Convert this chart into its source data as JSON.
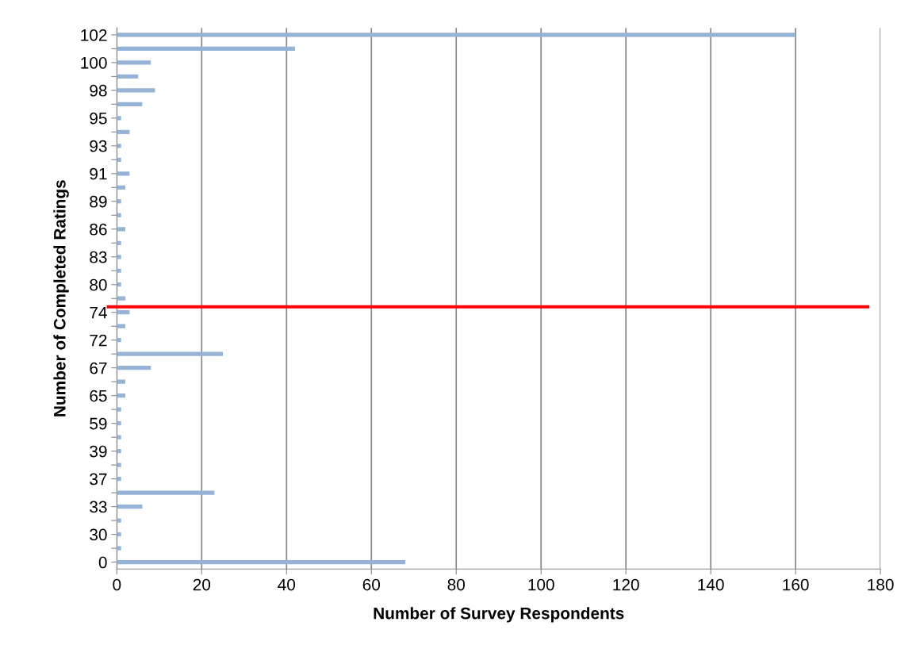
{
  "chart_data": {
    "type": "bar",
    "orientation": "horizontal",
    "xlabel": "Number of Survey Respondents",
    "ylabel": "Number of Completed Ratings",
    "categories": [
      "102",
      null,
      "100",
      null,
      "98",
      null,
      "95",
      null,
      "93",
      null,
      "91",
      null,
      "89",
      null,
      "86",
      null,
      "83",
      null,
      "80",
      null,
      "74",
      null,
      "72",
      null,
      "67",
      null,
      "65",
      null,
      "59",
      null,
      "39",
      null,
      "37",
      null,
      "33",
      null,
      "30",
      null,
      "0"
    ],
    "values": [
      160,
      42,
      8,
      5,
      9,
      6,
      1,
      3,
      1,
      1,
      3,
      2,
      1,
      1,
      2,
      1,
      1,
      1,
      1,
      2,
      3,
      2,
      1,
      25,
      8,
      2,
      2,
      1,
      1,
      1,
      1,
      1,
      1,
      23,
      6,
      1,
      1,
      1,
      68
    ],
    "color": "#95b3d7",
    "xlim": [
      0,
      180
    ],
    "xticks": [
      0,
      20,
      40,
      60,
      80,
      100,
      120,
      140,
      160,
      180
    ],
    "grid": "x",
    "ref_lines": [
      {
        "axis": "y",
        "value": "74",
        "color": "#ff0000",
        "line_style": "solid"
      }
    ]
  }
}
